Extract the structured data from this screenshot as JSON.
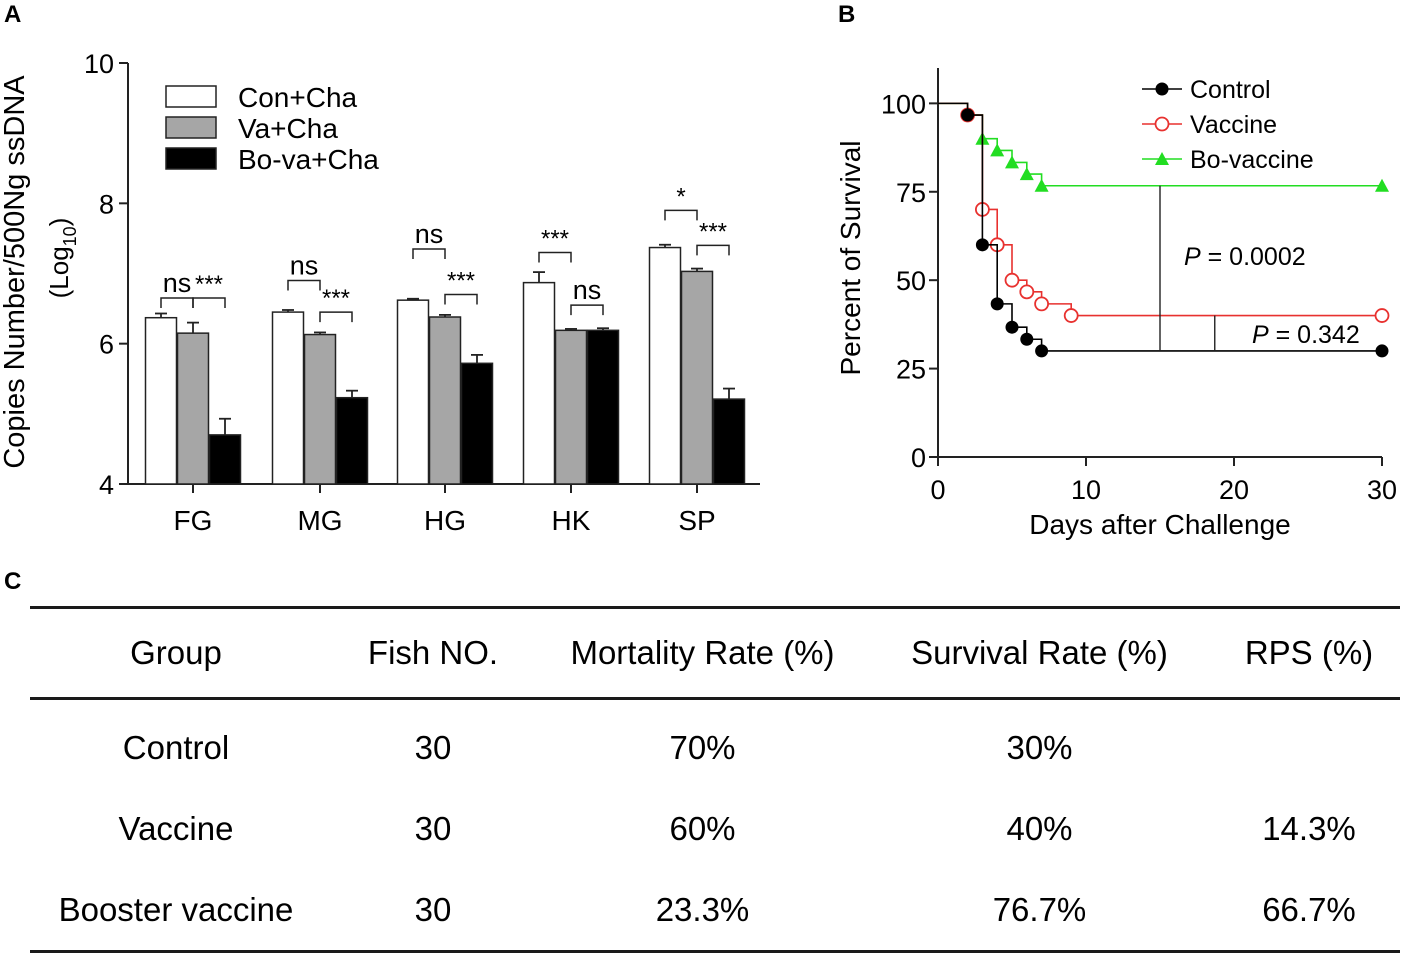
{
  "panel_labels": {
    "a": "A",
    "b": "B",
    "c": "C"
  },
  "chart_data": [
    {
      "type": "bar",
      "panel": "A",
      "ylabel_main": "Copies Number/500Ng ssDNA",
      "ylabel_unit_prefix": "(Log",
      "ylabel_unit_sub": "10",
      "ylabel_unit_suffix": ")",
      "ylim": [
        4,
        10
      ],
      "yticks": [
        4,
        6,
        8,
        10
      ],
      "categories": [
        "FG",
        "MG",
        "HG",
        "HK",
        "SP"
      ],
      "series": [
        {
          "name": "Con+Cha",
          "color": "#ffffff",
          "values": [
            6.37,
            6.45,
            6.62,
            6.87,
            7.37
          ],
          "errors": [
            0.06,
            0.03,
            0.02,
            0.15,
            0.04
          ]
        },
        {
          "name": "Va+Cha",
          "color": "#a6a6a6",
          "values": [
            6.15,
            6.13,
            6.38,
            6.19,
            7.03
          ],
          "errors": [
            0.15,
            0.03,
            0.03,
            0.02,
            0.04
          ]
        },
        {
          "name": "Bo-va+Cha",
          "color": "#000000",
          "values": [
            4.7,
            5.23,
            5.72,
            6.19,
            5.21
          ],
          "errors": [
            0.23,
            0.1,
            0.12,
            0.03,
            0.15
          ]
        }
      ],
      "significance": [
        {
          "category": "FG",
          "pair": [
            0,
            1
          ],
          "label": "ns",
          "level": 6.65
        },
        {
          "category": "FG",
          "pair": [
            1,
            2
          ],
          "label": "***",
          "level": 6.65
        },
        {
          "category": "MG",
          "pair": [
            0,
            1
          ],
          "label": "ns",
          "level": 6.9
        },
        {
          "category": "MG",
          "pair": [
            1,
            2
          ],
          "label": "***",
          "level": 6.45
        },
        {
          "category": "HG",
          "pair": [
            0,
            1
          ],
          "label": "ns",
          "level": 7.35
        },
        {
          "category": "HG",
          "pair": [
            1,
            2
          ],
          "label": "***",
          "level": 6.7
        },
        {
          "category": "HK",
          "pair": [
            0,
            1
          ],
          "label": "***",
          "level": 7.3
        },
        {
          "category": "HK",
          "pair": [
            1,
            2
          ],
          "label": "ns",
          "level": 6.55
        },
        {
          "category": "SP",
          "pair": [
            0,
            1
          ],
          "label": "*",
          "level": 7.9
        },
        {
          "category": "SP",
          "pair": [
            1,
            2
          ],
          "label": "***",
          "level": 7.4
        }
      ]
    },
    {
      "type": "line",
      "panel": "B",
      "xlabel": "Days after Challenge",
      "ylabel": "Percent of Survival",
      "xlim": [
        0,
        30
      ],
      "ylim": [
        0,
        110
      ],
      "xticks": [
        0,
        10,
        20,
        30
      ],
      "yticks": [
        0,
        25,
        50,
        75,
        100
      ],
      "series": [
        {
          "name": "Control",
          "color": "#000000",
          "marker": "filled-circle",
          "steps": [
            [
              0,
              100
            ],
            [
              2,
              96.7
            ],
            [
              3,
              60
            ],
            [
              4,
              43.3
            ],
            [
              5,
              36.7
            ],
            [
              6,
              33.3
            ],
            [
              7,
              30
            ],
            [
              30,
              30
            ]
          ],
          "points": [
            [
              2,
              96.7
            ],
            [
              3,
              60
            ],
            [
              4,
              43.3
            ],
            [
              5,
              36.7
            ],
            [
              6,
              33.3
            ],
            [
              7,
              30
            ],
            [
              30,
              30
            ]
          ]
        },
        {
          "name": "Vaccine",
          "color": "#e8312f",
          "marker": "open-circle",
          "steps": [
            [
              0,
              100
            ],
            [
              2,
              96.7
            ],
            [
              3,
              70
            ],
            [
              4,
              60
            ],
            [
              5,
              50
            ],
            [
              6,
              46.7
            ],
            [
              7,
              43.3
            ],
            [
              9,
              40
            ],
            [
              30,
              40
            ]
          ],
          "points": [
            [
              2,
              96.7
            ],
            [
              3,
              70
            ],
            [
              4,
              60
            ],
            [
              5,
              50
            ],
            [
              6,
              46.7
            ],
            [
              7,
              43.3
            ],
            [
              9,
              40
            ],
            [
              30,
              40
            ]
          ]
        },
        {
          "name": "Bo-vaccine",
          "color": "#22dd22",
          "marker": "filled-triangle",
          "steps": [
            [
              0,
              100
            ],
            [
              2,
              96.7
            ],
            [
              3,
              90
            ],
            [
              4,
              86.7
            ],
            [
              5,
              83.3
            ],
            [
              6,
              80
            ],
            [
              7,
              76.7
            ],
            [
              30,
              76.7
            ]
          ],
          "points": [
            [
              3,
              90
            ],
            [
              4,
              86.7
            ],
            [
              5,
              83.3
            ],
            [
              6,
              80
            ],
            [
              7,
              76.7
            ],
            [
              30,
              76.7
            ]
          ]
        }
      ],
      "comparisons": [
        {
          "p_label": "P",
          "p_value": " = 0.0002",
          "x": 15,
          "y_range": [
            30,
            76.7
          ]
        },
        {
          "p_label": "P",
          "p_value": " = 0.342",
          "x": 18.7,
          "y_range": [
            30,
            40
          ]
        }
      ]
    }
  ],
  "table": {
    "headers": [
      "Group",
      "Fish NO.",
      "Mortality Rate (%)",
      "Survival Rate (%)",
      "RPS (%)"
    ],
    "rows": [
      [
        "Control",
        "30",
        "70%",
        "30%",
        ""
      ],
      [
        "Vaccine",
        "30",
        "60%",
        "40%",
        "14.3%"
      ],
      [
        "Booster vaccine",
        "30",
        "23.3%",
        "76.7%",
        "66.7%"
      ]
    ]
  }
}
